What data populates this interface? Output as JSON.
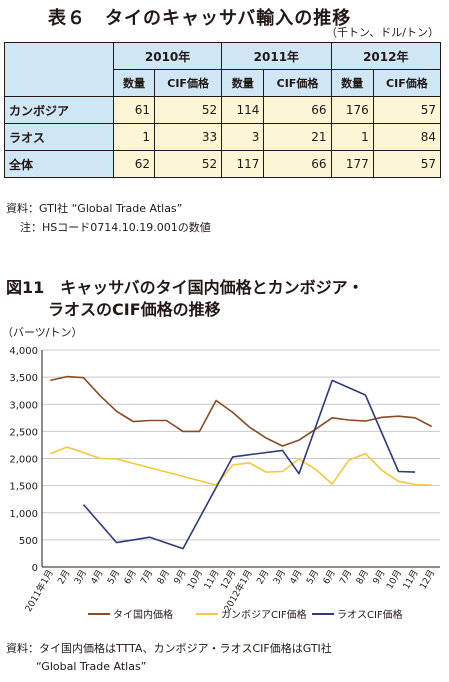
{
  "table6": {
    "title": "表６　タイのキャッサバ輸入の推移",
    "unit": "（千トン、ドル/トン）",
    "years": [
      "2010年",
      "2011年",
      "2012年"
    ],
    "sub_headers": [
      "数量",
      "CIF価格",
      "数量",
      "CIF価格",
      "数量",
      "CIF価格"
    ],
    "rows": [
      {
        "label": "カンボジア",
        "values": [
          "61",
          "52",
          "114",
          "66",
          "176",
          "57"
        ]
      },
      {
        "label": "ラオス",
        "values": [
          "1",
          "33",
          "3",
          "21",
          "1",
          "84"
        ]
      },
      {
        "label": "全体",
        "values": [
          "62",
          "52",
          "117",
          "66",
          "177",
          "57"
        ]
      }
    ],
    "source": "資料：GTI社 “Global Trade Atlas”",
    "note": "注：HSコード0714.10.19.001の数値"
  },
  "figure11": {
    "title_line1": "図11　キャッサバのタイ国内価格とカンボジア・",
    "title_line2": "ラオスのCIF価格の推移",
    "source_line1": "資料：タイ国内価格はTTTA、カンボジア・ラオスCIF価格はGTI社",
    "source_line2": "“Global Trade Atlas”"
  },
  "chart_data": {
    "type": "line",
    "ylabel": "（バーツ/トン）",
    "ylim": [
      0,
      4000
    ],
    "yticks": [
      "0",
      "500",
      "1,000",
      "1,500",
      "2,000",
      "2,500",
      "3,000",
      "3,500",
      "4,000"
    ],
    "grid": "horizontal",
    "legend_position": "bottom",
    "categories": [
      "2011年1月",
      "2月",
      "3月",
      "4月",
      "5月",
      "6月",
      "7月",
      "8月",
      "9月",
      "10月",
      "11月",
      "12月",
      "2012年1月",
      "2月",
      "3月",
      "4月",
      "5月",
      "6月",
      "7月",
      "8月",
      "9月",
      "10月",
      "11月",
      "12月"
    ],
    "series": [
      {
        "name": "タイ国内価格",
        "color": "#8a4a23",
        "values": [
          3440,
          3510,
          3490,
          3160,
          2870,
          2680,
          2700,
          2700,
          2500,
          2500,
          3070,
          2850,
          2580,
          2380,
          2230,
          2340,
          2540,
          2750,
          2710,
          2690,
          2760,
          2780,
          2750,
          2590
        ]
      },
      {
        "name": "カンボジアCIF価格",
        "color": "#f5c83c",
        "values": [
          2090,
          2210,
          2110,
          2000,
          1990,
          null,
          null,
          null,
          null,
          null,
          1510,
          1880,
          1920,
          1750,
          1760,
          1990,
          1800,
          1530,
          1970,
          2090,
          1780,
          1580,
          1520,
          1510
        ]
      },
      {
        "name": "ラオスCIF価格",
        "color": "#2e3a7c",
        "values": [
          null,
          null,
          1150,
          null,
          450,
          null,
          550,
          null,
          340,
          null,
          null,
          2030,
          null,
          null,
          2150,
          1720,
          null,
          3440,
          null,
          3170,
          null,
          1760,
          1750,
          null
        ]
      }
    ]
  }
}
